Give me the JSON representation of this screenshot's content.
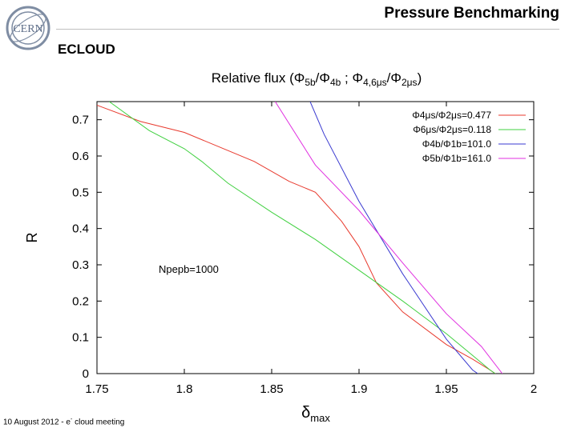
{
  "slide": {
    "title": "Pressure Benchmarking",
    "subtitle": "ECLOUD",
    "footer_prefix": "10 August 2012  -  e",
    "footer_sup": "-",
    "footer_suffix": " cloud meeting",
    "logo_text": "CERN"
  },
  "colors": {
    "red": "#e83a2e",
    "green": "#40d040",
    "blue": "#3a3ad0",
    "magenta": "#e030e0"
  },
  "chart_data": {
    "type": "line",
    "title": "Relative flux (Φ5b/Φ4b ; Φ4,6μs/Φ2μs)",
    "xlabel": "δmax",
    "ylabel": "R",
    "xlim": [
      1.75,
      2.0
    ],
    "ylim": [
      0,
      0.75
    ],
    "xticks": [
      "1.75",
      "1.8",
      "1.85",
      "1.9",
      "1.95",
      "2"
    ],
    "yticks": [
      "0",
      "0.1",
      "0.2",
      "0.3",
      "0.4",
      "0.5",
      "0.6",
      "0.7"
    ],
    "annotation": "Npepb=1000",
    "series": [
      {
        "name": "Φ4μs/Φ2μs=0.477",
        "color": "red",
        "x": [
          1.75,
          1.775,
          1.8,
          1.825,
          1.84,
          1.86,
          1.875,
          1.89,
          1.9,
          1.91,
          1.925,
          1.95,
          1.965,
          1.975,
          1.978
        ],
        "y": [
          0.74,
          0.695,
          0.665,
          0.615,
          0.585,
          0.53,
          0.5,
          0.42,
          0.35,
          0.25,
          0.17,
          0.08,
          0.04,
          0.01,
          0.0
        ]
      },
      {
        "name": "Φ6μs/Φ2μs=0.118",
        "color": "green",
        "x": [
          1.757,
          1.78,
          1.8,
          1.81,
          1.825,
          1.85,
          1.875,
          1.9,
          1.925,
          1.95,
          1.965,
          1.975,
          1.978
        ],
        "y": [
          0.75,
          0.67,
          0.62,
          0.585,
          0.525,
          0.445,
          0.37,
          0.285,
          0.2,
          0.11,
          0.05,
          0.01,
          0.0
        ]
      },
      {
        "name": "Φ4b/Φ1b=101.0",
        "color": "blue",
        "x": [
          1.872,
          1.88,
          1.9,
          1.925,
          1.95,
          1.965,
          1.968
        ],
        "y": [
          0.75,
          0.66,
          0.475,
          0.275,
          0.095,
          0.01,
          0.0
        ]
      },
      {
        "name": "Φ5b/Φ1b=161.0",
        "color": "magenta",
        "x": [
          1.852,
          1.875,
          1.9,
          1.925,
          1.95,
          1.97,
          1.982
        ],
        "y": [
          0.75,
          0.575,
          0.45,
          0.305,
          0.165,
          0.075,
          0.0
        ]
      }
    ]
  }
}
